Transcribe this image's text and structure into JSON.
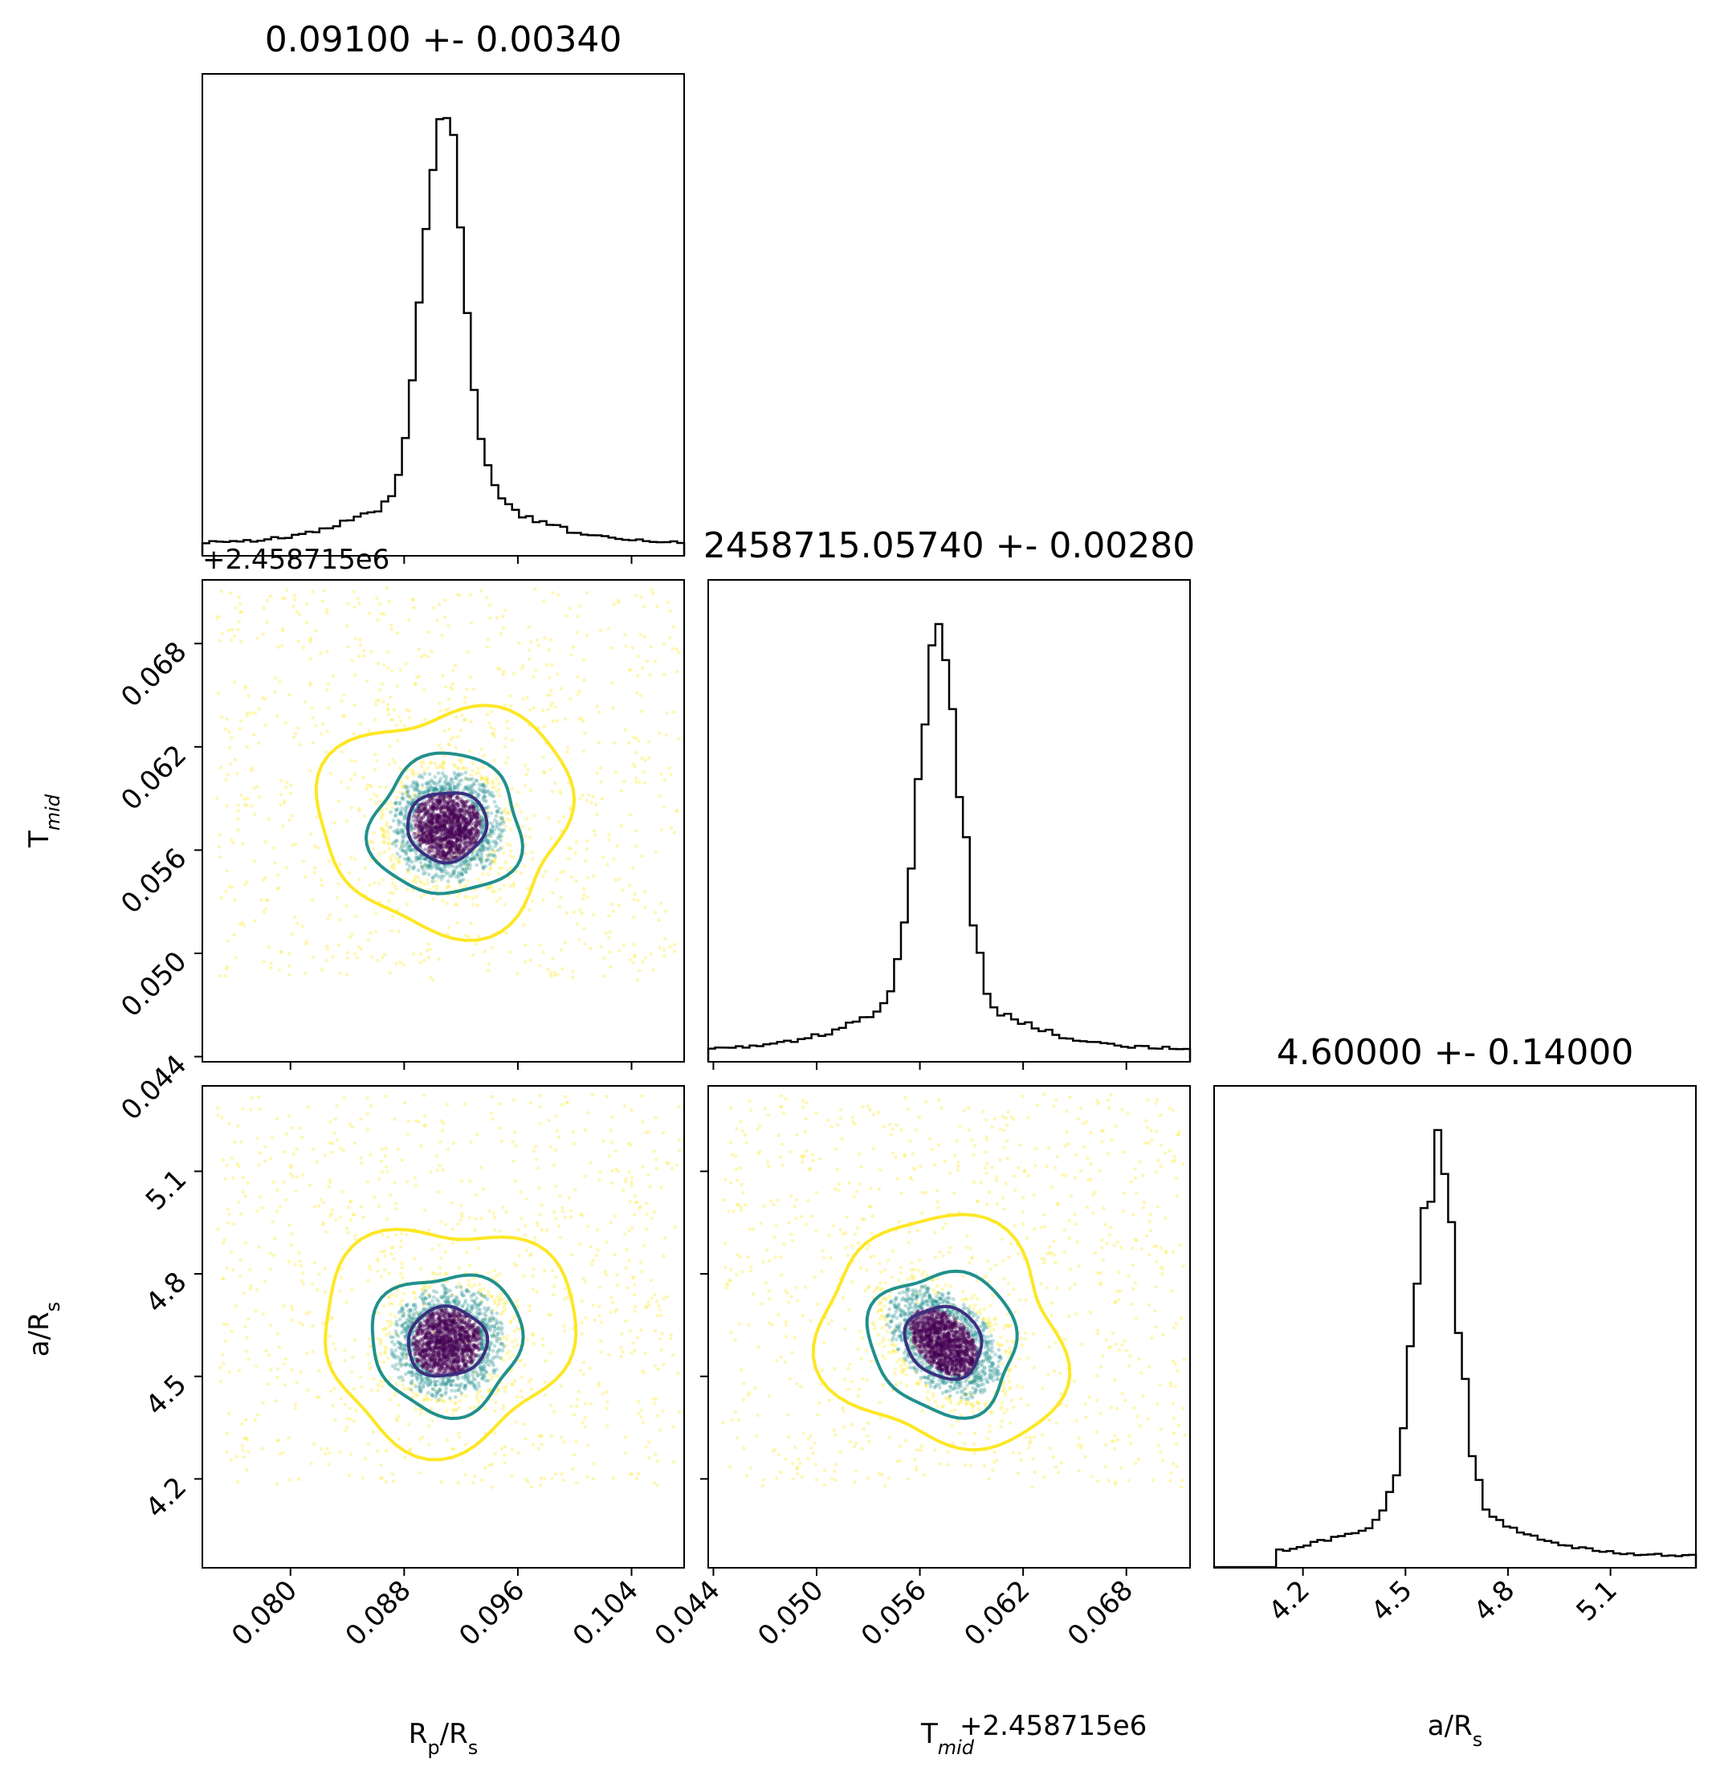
{
  "chart_data": {
    "type": "corner",
    "colors": {
      "hist_line": "#000000",
      "contour_inner": "#3b2f80",
      "contour_middle": "#21908d",
      "contour_outer": "#fde725",
      "point_dense": "#440154",
      "point_mid": "#21908d",
      "point_sparse": "#fde725"
    },
    "parameters": [
      {
        "key": "rp",
        "label_main": "R",
        "label_sub": "p",
        "label_tail": "/R",
        "label_tail_sub": "s",
        "title": "0.09100 +- 0.00340",
        "median": 0.091,
        "sigma": 0.0034,
        "range": [
          0.0738,
          0.1077
        ],
        "ticks": [
          0.08,
          0.088,
          0.096,
          0.104
        ],
        "tick_labels": [
          "0.080",
          "0.088",
          "0.096",
          "0.104"
        ],
        "offset_text": ""
      },
      {
        "key": "tmid",
        "label_main": "T",
        "label_sub": "mid",
        "label_tail": "",
        "label_tail_sub": "",
        "title": "2458715.05740 +- 0.00280",
        "median": 0.0574,
        "sigma": 0.0028,
        "range": [
          0.0437,
          0.0717
        ],
        "ticks": [
          0.044,
          0.05,
          0.056,
          0.062,
          0.068
        ],
        "tick_labels": [
          "0.044",
          "0.050",
          "0.056",
          "0.062",
          "0.068"
        ],
        "offset_text": "+2.458715e6"
      },
      {
        "key": "ars",
        "label_main": "a/R",
        "label_sub": "s",
        "label_tail": "",
        "label_tail_sub": "",
        "title": "4.60000 +- 0.14000",
        "median": 4.6,
        "sigma": 0.14,
        "range": [
          3.94,
          5.35
        ],
        "ticks": [
          4.2,
          4.5,
          4.8,
          5.1
        ],
        "tick_labels": [
          "4.2",
          "4.5",
          "4.8",
          "5.1"
        ],
        "offset_text": ""
      }
    ],
    "histograms": {
      "bins": 70,
      "rp_peak_x": 0.0908,
      "tmid_peak_x": 0.0571,
      "ars_peak_x": 4.59
    },
    "contours": {
      "levels": [
        "inner",
        "middle",
        "outer"
      ]
    }
  }
}
